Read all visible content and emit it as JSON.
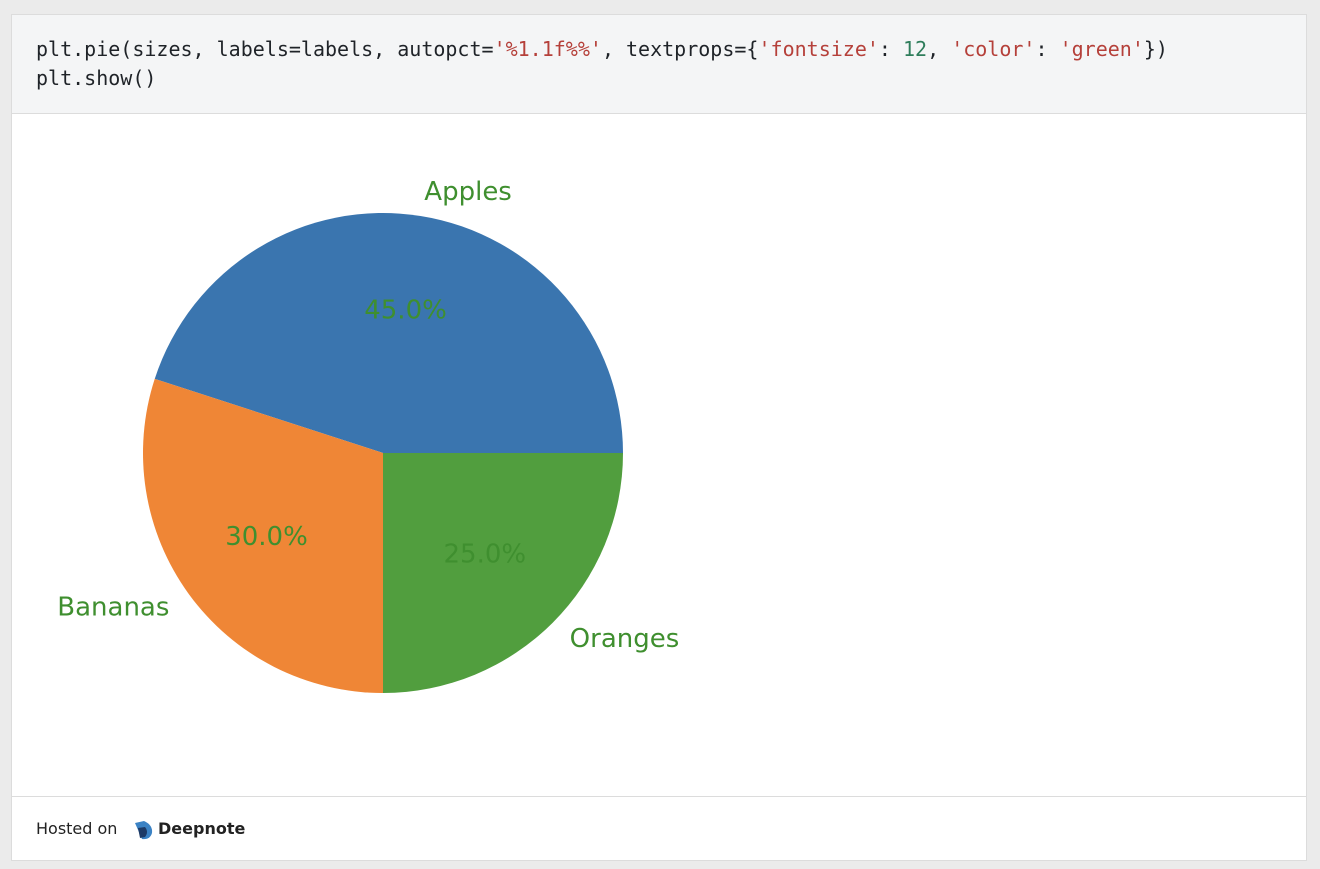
{
  "code": {
    "lines": [
      [
        {
          "text": "plt.pie(sizes, labels=labels, autopct=",
          "color": "#1f2328"
        },
        {
          "text": "'%1.1f%%'",
          "color": "#b5403a"
        },
        {
          "text": ", textprops={",
          "color": "#1f2328"
        },
        {
          "text": "'fontsize'",
          "color": "#b5403a"
        },
        {
          "text": ": ",
          "color": "#1f2328"
        },
        {
          "text": "12",
          "color": "#2e7d5b"
        },
        {
          "text": ", ",
          "color": "#1f2328"
        },
        {
          "text": "'color'",
          "color": "#b5403a"
        },
        {
          "text": ": ",
          "color": "#1f2328"
        },
        {
          "text": "'green'",
          "color": "#b5403a"
        },
        {
          "text": "})",
          "color": "#1f2328"
        }
      ],
      [
        {
          "text": "plt.show()",
          "color": "#1f2328"
        }
      ]
    ]
  },
  "chart_data": {
    "type": "pie",
    "categories": [
      "Apples",
      "Bananas",
      "Oranges"
    ],
    "values": [
      45,
      30,
      25
    ],
    "value_labels": [
      "45.0%",
      "30.0%",
      "25.0%"
    ],
    "colors": [
      "#3a75af",
      "#ef8636",
      "#519e3e"
    ],
    "text_color": "#3f8f2f",
    "start_angle": 0,
    "counterclock": true
  },
  "footer": {
    "prefix": "Hosted on",
    "brand": "Deepnote"
  }
}
